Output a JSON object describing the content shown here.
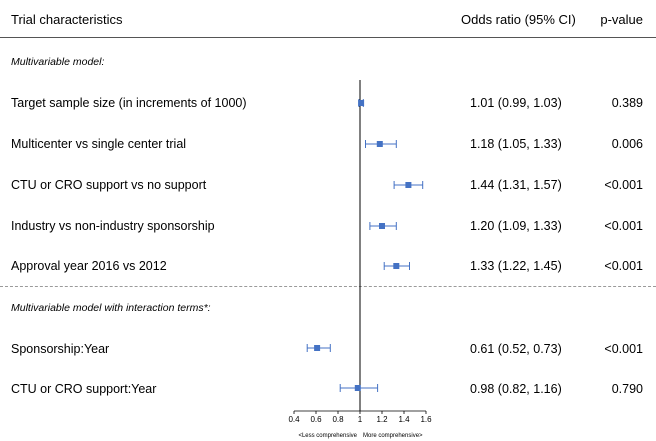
{
  "header": {
    "col_characteristics": "Trial characteristics",
    "col_or": "Odds ratio (95% CI)",
    "col_p": "p-value"
  },
  "sections": {
    "main": "Multivariable model:",
    "interaction": "Multivariable model with interaction terms*:"
  },
  "rows": [
    {
      "label": "Target sample size (in increments of 1000)",
      "or_text": "1.01 (0.99, 1.03)",
      "p": "0.389"
    },
    {
      "label": "Multicenter vs single center trial",
      "or_text": "1.18 (1.05, 1.33)",
      "p": "0.006"
    },
    {
      "label": "CTU or CRO support vs no support",
      "or_text": "1.44 (1.31, 1.57)",
      "p": "<0.001"
    },
    {
      "label": "Industry vs non-industry sponsorship",
      "or_text": "1.20 (1.09, 1.33)",
      "p": "<0.001"
    },
    {
      "label": "Approval year 2016 vs 2012",
      "or_text": "1.33 (1.22, 1.45)",
      "p": "<0.001"
    },
    {
      "label": "Sponsorship:Year",
      "or_text": "0.61 (0.52, 0.73)",
      "p": "<0.001"
    },
    {
      "label": "CTU or CRO support:Year",
      "or_text": "0.98 (0.82, 1.16)",
      "p": "0.790"
    }
  ],
  "chart_data": {
    "type": "scatter",
    "series": [
      {
        "values": [
          {
            "or": 1.01,
            "lo": 0.99,
            "hi": 1.03
          },
          {
            "or": 1.18,
            "lo": 1.05,
            "hi": 1.33
          },
          {
            "or": 1.44,
            "lo": 1.31,
            "hi": 1.57
          },
          {
            "or": 1.2,
            "lo": 1.09,
            "hi": 1.33
          },
          {
            "or": 1.33,
            "lo": 1.22,
            "hi": 1.45
          },
          {
            "or": 0.61,
            "lo": 0.52,
            "hi": 0.73
          },
          {
            "or": 0.98,
            "lo": 0.82,
            "hi": 1.16
          }
        ]
      }
    ],
    "categories": [
      "Target sample size (in increments of 1000)",
      "Multicenter vs single center trial",
      "CTU or CRO support vs no support",
      "Industry vs non-industry sponsorship",
      "Approval year 2016 vs 2012",
      "Sponsorship:Year",
      "CTU or CRO support:Year"
    ],
    "reference_line": 1,
    "xlim": [
      0.4,
      1.6
    ],
    "x_ticks": [
      "0.4",
      "0.6",
      "0.8",
      "1",
      "1.2",
      "1.4",
      "1.6"
    ],
    "x_direction_labels": {
      "left": "<Less comprehensive",
      "right": "More comprehensive>"
    },
    "marker_color": "#4472C4",
    "ci_color": "#4472C4",
    "grid": false
  }
}
